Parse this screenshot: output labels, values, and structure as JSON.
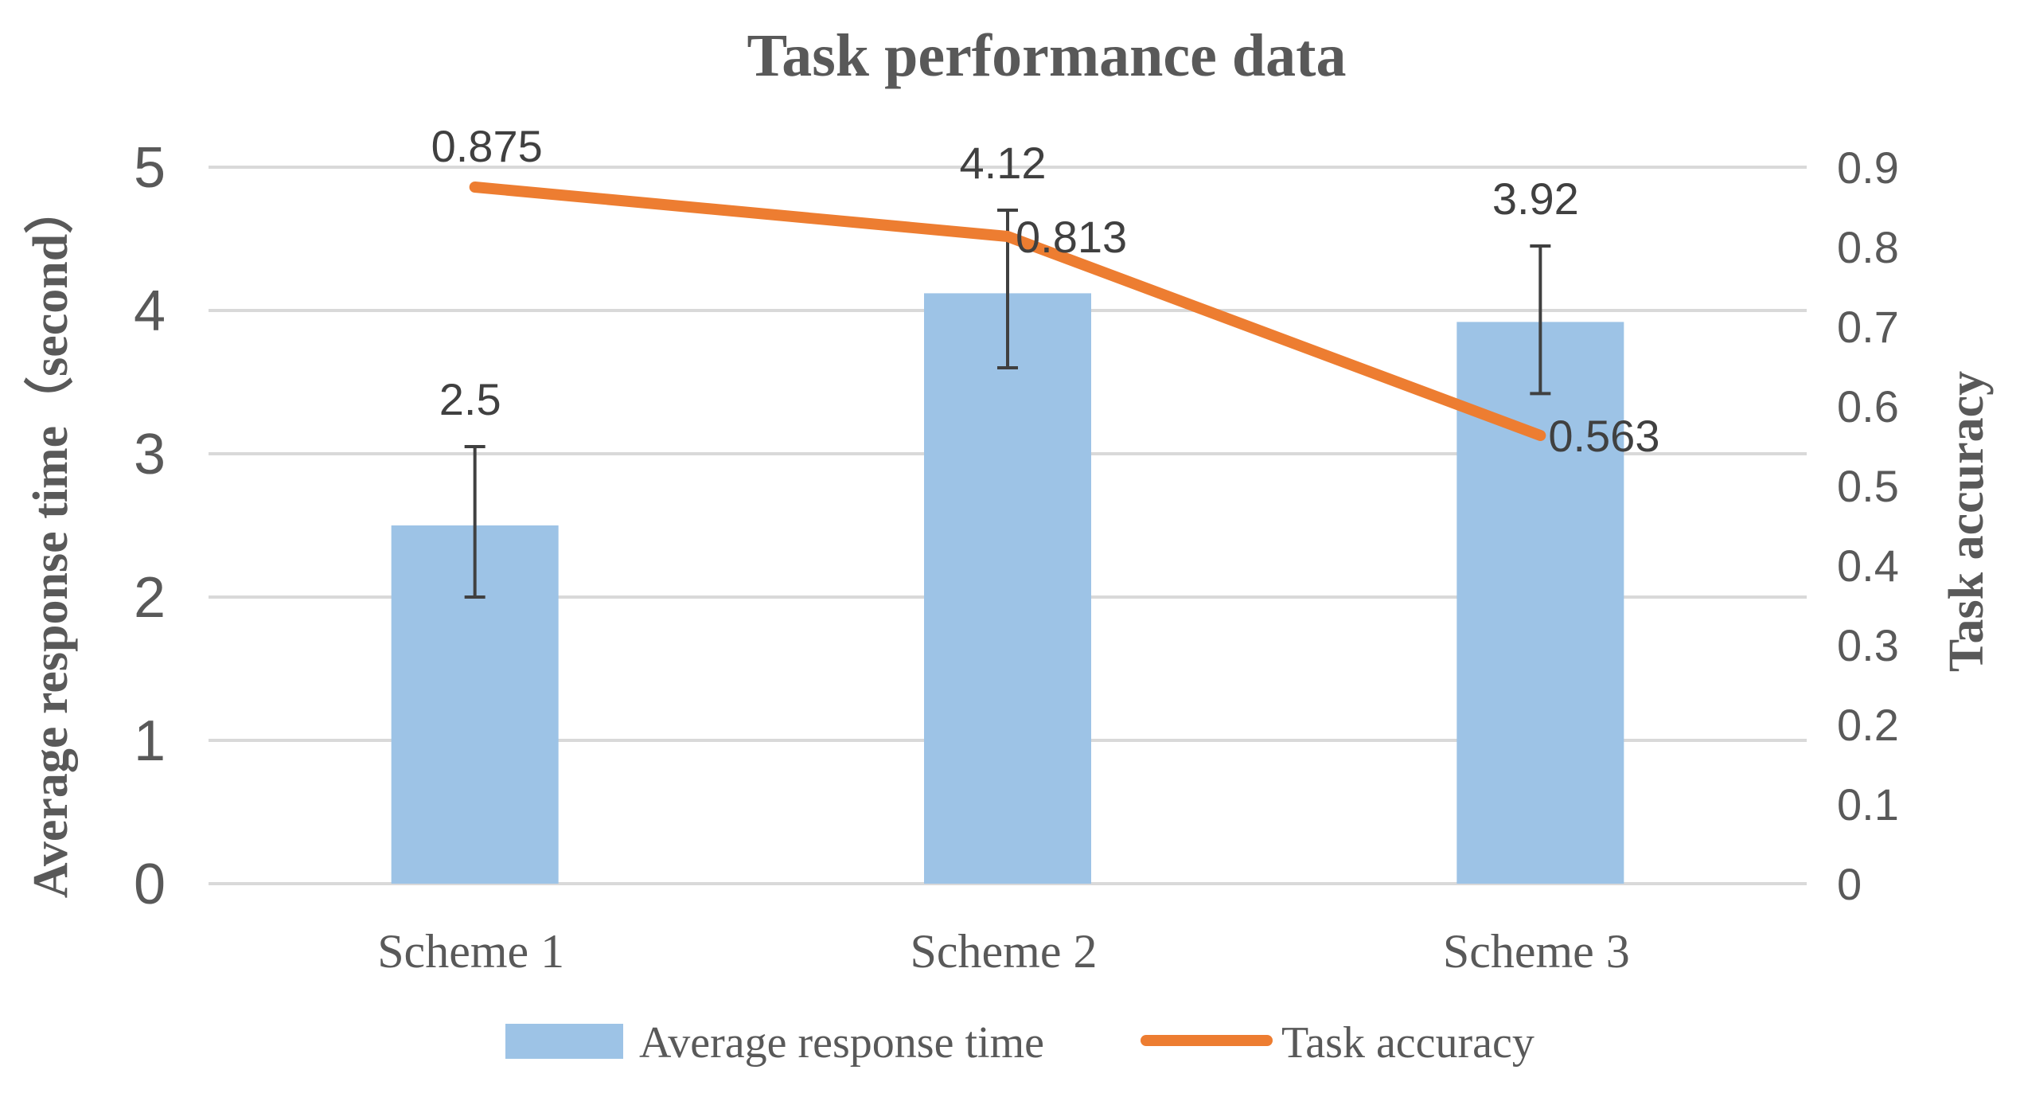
{
  "chart_data": {
    "type": "bar",
    "title": "Task performance data",
    "categories": [
      "Scheme 1",
      "Scheme 2",
      "Scheme 3"
    ],
    "ylabel": "Average response time（second）",
    "y2label": "Task accuracy",
    "ylim": [
      0,
      5
    ],
    "yticks": [
      "0",
      "1",
      "2",
      "3",
      "4",
      "5"
    ],
    "y2lim": [
      0,
      0.9
    ],
    "y2ticks": [
      "0",
      "0.1",
      "0.2",
      "0.3",
      "0.4",
      "0.5",
      "0.6",
      "0.7",
      "0.8",
      "0.9"
    ],
    "grid": true,
    "legend_position": "bottom",
    "series": [
      {
        "name": "Average response time",
        "type": "bar",
        "axis": "left",
        "color": "#9DC3E6",
        "values": [
          2.5,
          4.12,
          3.92
        ],
        "labels": [
          "2.5",
          "4.12",
          "3.92"
        ],
        "error_low": [
          2.0,
          3.6,
          3.42
        ],
        "error_high": [
          3.05,
          4.7,
          4.45
        ]
      },
      {
        "name": "Task accuracy",
        "type": "line",
        "axis": "right",
        "color": "#ED7D31",
        "values": [
          0.875,
          0.813,
          0.563
        ],
        "labels": [
          "0.875",
          "0.813",
          "0.563"
        ]
      }
    ]
  }
}
